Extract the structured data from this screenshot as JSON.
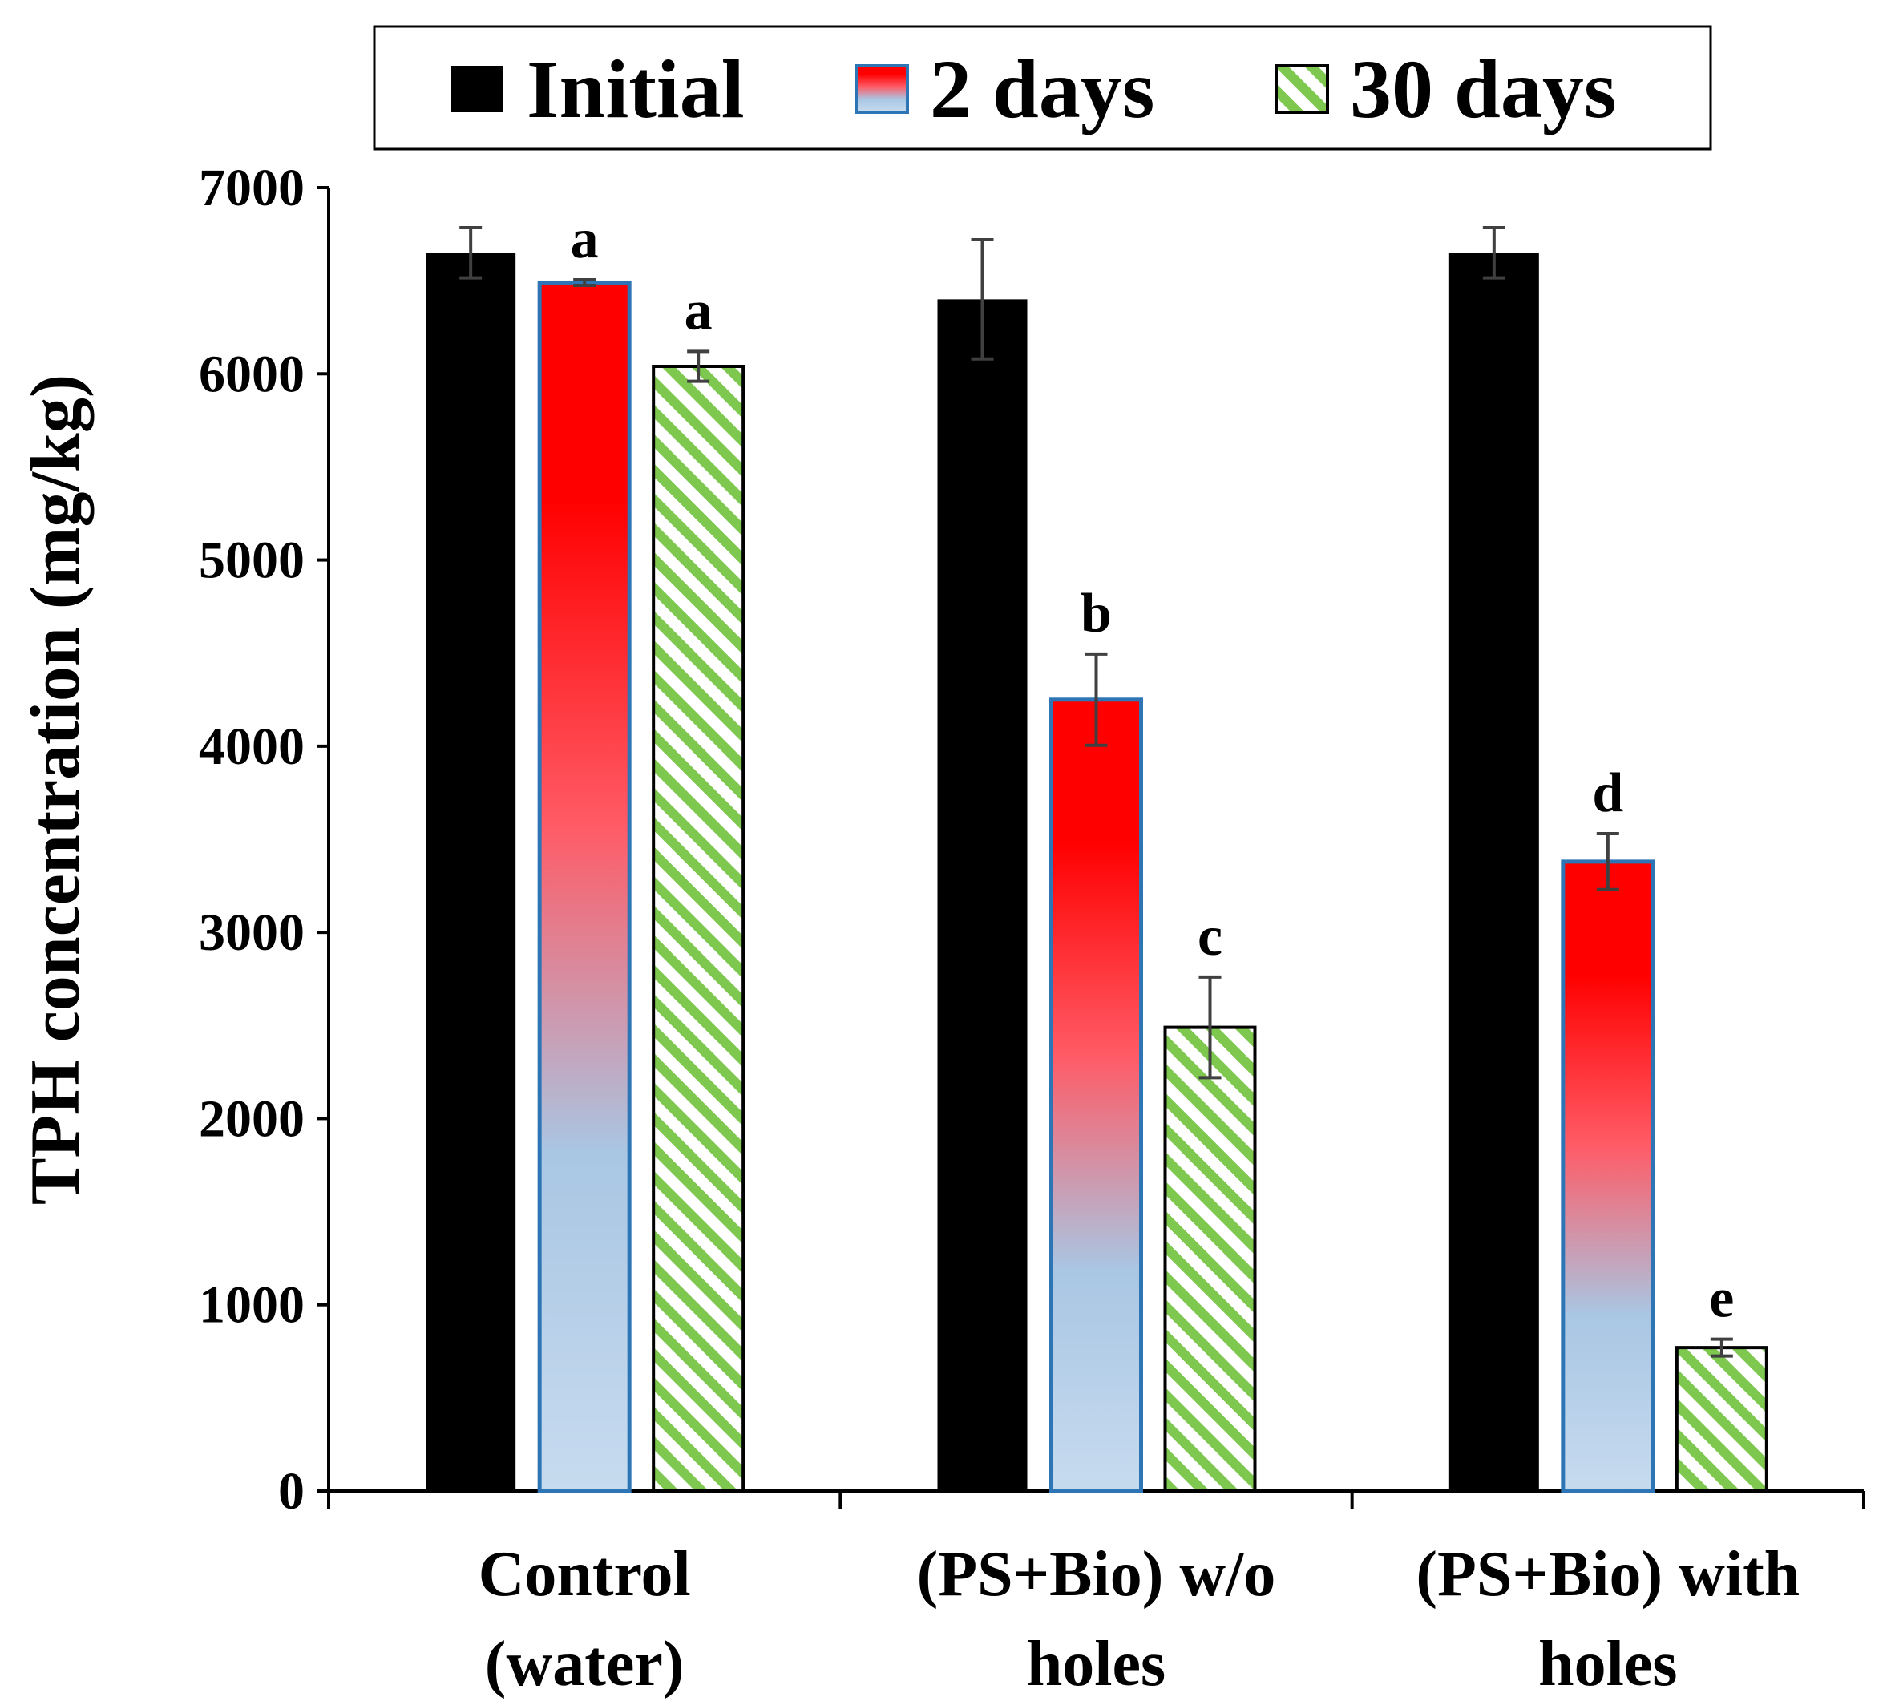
{
  "chart_data": {
    "type": "bar",
    "title": "",
    "xlabel": "",
    "ylabel": "TPH concentration (mg/kg)",
    "ylim": [
      0,
      7000
    ],
    "yticks": [
      0,
      1000,
      2000,
      3000,
      4000,
      5000,
      6000,
      7000
    ],
    "grid": false,
    "legend_position": "top",
    "categories": [
      [
        "Control",
        "(water)"
      ],
      [
        "(PS+Bio) w/o",
        "holes"
      ],
      [
        "(PS+Bio) with",
        "holes"
      ]
    ],
    "series": [
      {
        "name": "Initial",
        "style": "solid-black",
        "values": [
          6650,
          6400,
          6650
        ],
        "errors": [
          135,
          320,
          135
        ],
        "labels": [
          "",
          "",
          ""
        ]
      },
      {
        "name": "2 days",
        "style": "red-to-blue-gradient",
        "values": [
          6490,
          4250,
          3380
        ],
        "errors": [
          15,
          245,
          150
        ],
        "labels": [
          "a",
          "b",
          "d"
        ]
      },
      {
        "name": "30 days",
        "style": "green-diagonal-hatch",
        "values": [
          6040,
          2490,
          770
        ],
        "errors": [
          80,
          270,
          45
        ],
        "labels": [
          "a",
          "c",
          "e"
        ]
      }
    ]
  },
  "colors": {
    "initial": "#000000",
    "gradient_top": "#ff0000",
    "gradient_mid": "#ff5b66",
    "gradient_low": "#a9c6e3",
    "gradient_bottom": "#c7dbef",
    "bar2_border": "#2e75b6",
    "hatch_green": "#7ec850",
    "error_bar": "#404040"
  }
}
